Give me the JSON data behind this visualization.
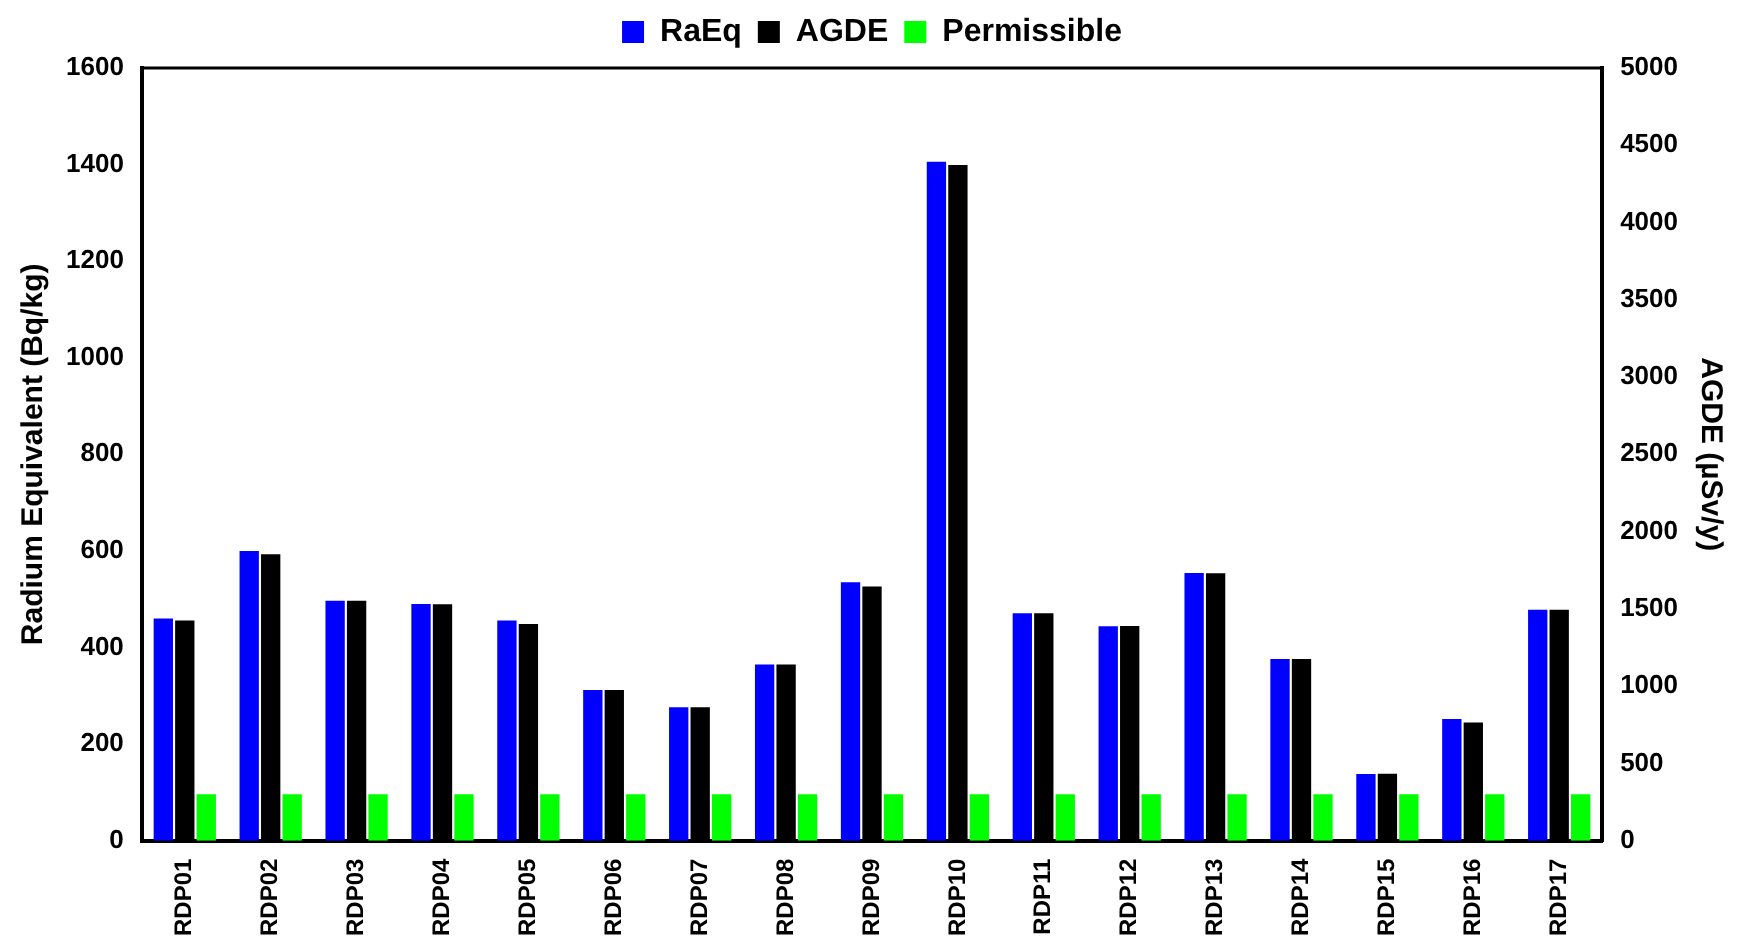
{
  "chart_data": {
    "type": "bar",
    "ylabel": "Radium Equivalent (Bq/kg)",
    "y2label": "AGDE (µSv/y)",
    "categories": [
      "RDP01",
      "RDP02",
      "RDP03",
      "RDP04",
      "RDP05",
      "RDP06",
      "RDP07",
      "RDP08",
      "RDP09",
      "RDP10",
      "RDP11",
      "RDP12",
      "RDP13",
      "RDP14",
      "RDP15",
      "RDP16",
      "RDP17"
    ],
    "series": [
      {
        "name": "RaEq",
        "color": "#0000ff",
        "values": [
          460,
          600,
          497,
          490,
          456,
          312,
          276,
          365,
          535,
          1406,
          471,
          444,
          554,
          376,
          138,
          252,
          478
        ]
      },
      {
        "name": "AGDE",
        "color": "#000000",
        "axis": "y2",
        "values": [
          1425,
          1853,
          1553,
          1530,
          1402,
          975,
          863,
          1140,
          1645,
          4372,
          1471,
          1389,
          1730,
          1175,
          433,
          765,
          1494
        ]
      },
      {
        "name": "Permissible",
        "color": "#00ff00",
        "axis": "y2",
        "values": [
          300,
          300,
          300,
          300,
          300,
          300,
          300,
          300,
          300,
          300,
          300,
          300,
          300,
          300,
          300,
          300,
          300
        ]
      }
    ],
    "ylim": [
      0,
      1600
    ],
    "yticks": [
      0,
      200,
      400,
      600,
      800,
      1000,
      1200,
      1400,
      1600
    ],
    "y2lim": [
      0,
      5000
    ],
    "y2ticks": [
      0,
      500,
      1000,
      1500,
      2000,
      2500,
      3000,
      3500,
      4000,
      4500,
      5000
    ],
    "grid": false,
    "legend": "top"
  }
}
